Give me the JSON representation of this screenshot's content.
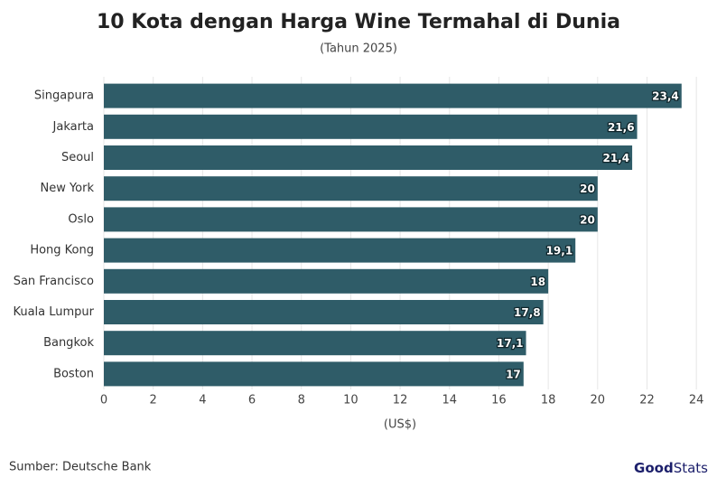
{
  "chart_data": {
    "type": "barh",
    "title": "10 Kota dengan Harga Wine Termahal di Dunia",
    "subtitle": "(Tahun 2025)",
    "categories": [
      "Singapura",
      "Jakarta",
      "Seoul",
      "New York",
      "Oslo",
      "Hong Kong",
      "San Francisco",
      "Kuala Lumpur",
      "Bangkok",
      "Boston"
    ],
    "values": [
      23.4,
      21.6,
      21.4,
      20,
      20,
      19.1,
      18,
      17.8,
      17.1,
      17
    ],
    "value_labels": [
      "23,4",
      "21,6",
      "21,4",
      "20",
      "20",
      "19,1",
      "18",
      "17,8",
      "17,1",
      "17"
    ],
    "color": "#2f5c68",
    "xlim": [
      0,
      24.25
    ],
    "xticks": [
      0,
      2,
      4,
      6,
      8,
      10,
      12,
      14,
      16,
      18,
      20,
      22,
      24
    ],
    "grid": true,
    "xlabel": "(US$)"
  },
  "source": "Sumber: Deutsche Bank",
  "logo": [
    "Good",
    "Stats"
  ]
}
